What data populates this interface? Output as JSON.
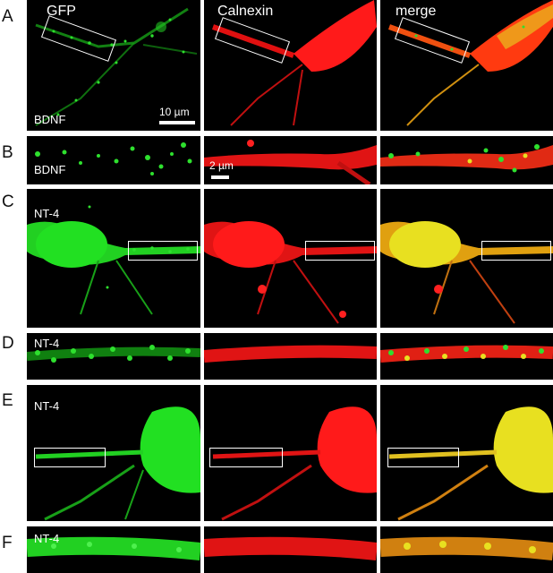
{
  "columns": {
    "gfp": "GFP",
    "calnexin": "Calnexin",
    "merge": "merge"
  },
  "rows": {
    "A": {
      "letter": "A",
      "label": "BDNF"
    },
    "B": {
      "letter": "B",
      "label": "BDNF"
    },
    "C": {
      "letter": "C",
      "label": "NT-4"
    },
    "D": {
      "letter": "D",
      "label": "NT-4"
    },
    "E": {
      "letter": "E",
      "label": "NT-4"
    },
    "F": {
      "letter": "F",
      "label": "NT-4"
    }
  },
  "scale_bars": {
    "large": "10 µm",
    "small": "2 µm"
  },
  "colors": {
    "gfp": "#22e022",
    "calnexin": "#ff1a1a",
    "merge": "#e8e020",
    "background": "#000000"
  }
}
